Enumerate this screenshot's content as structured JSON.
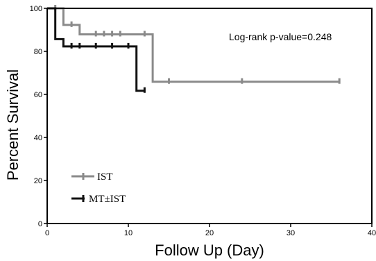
{
  "chart_data": {
    "type": "line",
    "step": true,
    "title": "",
    "xlabel": "Follow Up (Day)",
    "ylabel": "Percent Survival",
    "xlim": [
      0,
      40
    ],
    "ylim": [
      0,
      100
    ],
    "xticks": [
      0,
      10,
      20,
      30,
      40
    ],
    "yticks": [
      0,
      20,
      40,
      60,
      80,
      100
    ],
    "grid": false,
    "legend_position": "bottom-left",
    "annotation": "Log-rank p-value=0.248",
    "series": [
      {
        "name": "IST",
        "color": "#8a8a8a",
        "steps": [
          [
            0,
            100
          ],
          [
            2,
            92.3
          ],
          [
            4,
            87.9
          ],
          [
            13,
            65.9
          ],
          [
            36,
            65.9
          ]
        ],
        "censored": [
          [
            1,
            100
          ],
          [
            3,
            92.3
          ],
          [
            6,
            87.9
          ],
          [
            7,
            87.9
          ],
          [
            8,
            87.9
          ],
          [
            9,
            87.9
          ],
          [
            12,
            87.9
          ],
          [
            15,
            65.9
          ],
          [
            24,
            65.9
          ],
          [
            36,
            65.9
          ]
        ]
      },
      {
        "name": "MT±IST",
        "color": "#111111",
        "steps": [
          [
            0,
            100
          ],
          [
            1,
            85.7
          ],
          [
            2,
            82.3
          ],
          [
            11,
            61.7
          ],
          [
            12,
            61.7
          ]
        ],
        "censored": [
          [
            3,
            82.3
          ],
          [
            4,
            82.3
          ],
          [
            6,
            82.3
          ],
          [
            8,
            82.3
          ],
          [
            10,
            82.3
          ],
          [
            12,
            61.7
          ]
        ]
      }
    ]
  }
}
